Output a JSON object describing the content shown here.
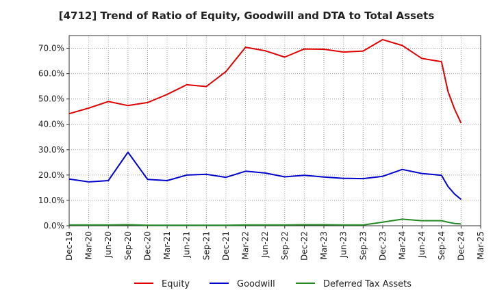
{
  "title": "[4712]  Trend of Ratio of Equity, Goodwill and DTA to Total Assets",
  "chart_data": {
    "type": "line",
    "title": "[4712]  Trend of Ratio of Equity, Goodwill and DTA to Total Assets",
    "xlabel": "",
    "ylabel": "",
    "ylim": [
      0,
      75
    ],
    "ytick_values": [
      0,
      10,
      20,
      30,
      40,
      50,
      60,
      70
    ],
    "ytick_labels": [
      "0.0%",
      "10.0%",
      "20.0%",
      "30.0%",
      "40.0%",
      "50.0%",
      "60.0%",
      "70.0%"
    ],
    "x_ticks": [
      "Dec-19",
      "Mar-20",
      "Jun-20",
      "Sep-20",
      "Dec-20",
      "Mar-21",
      "Jun-21",
      "Sep-21",
      "Dec-21",
      "Mar-22",
      "Jun-22",
      "Sep-22",
      "Dec-22",
      "Mar-23",
      "Jun-23",
      "Sep-23",
      "Dec-23",
      "Mar-24",
      "Jun-24",
      "Sep-24",
      "Dec-24",
      "Mar-25"
    ],
    "grid": true,
    "legend_position": "bottom",
    "series": [
      {
        "name": "Equity",
        "color": "#dd0000",
        "points": [
          [
            0,
            44.2
          ],
          [
            1,
            46.4
          ],
          [
            2,
            49.0
          ],
          [
            3,
            47.4
          ],
          [
            4,
            48.6
          ],
          [
            5,
            51.8
          ],
          [
            6,
            55.6
          ],
          [
            7,
            54.9
          ],
          [
            8,
            60.8
          ],
          [
            9,
            70.4
          ],
          [
            10,
            69.0
          ],
          [
            11,
            66.5
          ],
          [
            12,
            69.7
          ],
          [
            13,
            69.6
          ],
          [
            14,
            68.5
          ],
          [
            15,
            68.9
          ],
          [
            16,
            73.4
          ],
          [
            17,
            71.1
          ],
          [
            18,
            66.0
          ],
          [
            19,
            64.7
          ],
          [
            19.33,
            53.0
          ],
          [
            19.67,
            46.0
          ],
          [
            20,
            40.5
          ]
        ]
      },
      {
        "name": "Goodwill",
        "color": "#0000cc",
        "points": [
          [
            0,
            18.4
          ],
          [
            1,
            17.3
          ],
          [
            2,
            17.8
          ],
          [
            3,
            29.0
          ],
          [
            4,
            18.3
          ],
          [
            5,
            17.8
          ],
          [
            6,
            20.0
          ],
          [
            7,
            20.3
          ],
          [
            8,
            19.1
          ],
          [
            9,
            21.5
          ],
          [
            10,
            20.8
          ],
          [
            11,
            19.3
          ],
          [
            12,
            19.9
          ],
          [
            13,
            19.2
          ],
          [
            14,
            18.7
          ],
          [
            15,
            18.6
          ],
          [
            16,
            19.5
          ],
          [
            17,
            22.2
          ],
          [
            18,
            20.6
          ],
          [
            19,
            19.9
          ],
          [
            19.33,
            15.5
          ],
          [
            19.67,
            12.5
          ],
          [
            20,
            10.4
          ]
        ]
      },
      {
        "name": "Deferred Tax Assets",
        "color": "#228822",
        "points": [
          [
            0,
            0.3
          ],
          [
            1,
            0.3
          ],
          [
            2,
            0.3
          ],
          [
            3,
            0.4
          ],
          [
            4,
            0.2
          ],
          [
            5,
            0.2
          ],
          [
            6,
            0.2
          ],
          [
            7,
            0.2
          ],
          [
            8,
            0.2
          ],
          [
            9,
            0.3
          ],
          [
            10,
            0.3
          ],
          [
            11,
            0.3
          ],
          [
            12,
            0.4
          ],
          [
            13,
            0.4
          ],
          [
            14,
            0.3
          ],
          [
            15,
            0.3
          ],
          [
            16,
            1.4
          ],
          [
            17,
            2.6
          ],
          [
            18,
            2.0
          ],
          [
            19,
            2.0
          ],
          [
            19.33,
            1.4
          ],
          [
            19.67,
            0.9
          ],
          [
            20,
            0.7
          ]
        ]
      }
    ]
  }
}
